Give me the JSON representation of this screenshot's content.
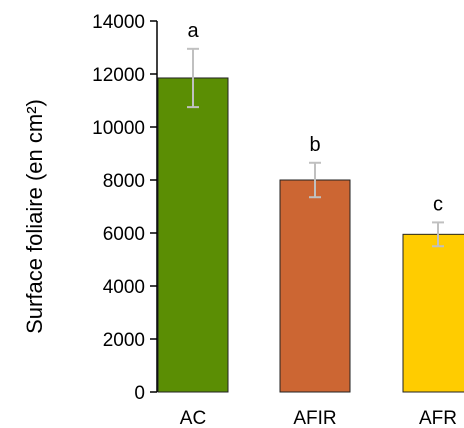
{
  "chart_data": {
    "type": "bar",
    "ylabel": "Surface foliaire (en cm²)",
    "xlabel": "",
    "title": "",
    "ylim": [
      0,
      14000
    ],
    "yticks": [
      0,
      2000,
      4000,
      6000,
      8000,
      10000,
      12000,
      14000
    ],
    "categories": [
      "AC",
      "AFIR",
      "AFR"
    ],
    "values": [
      11850,
      8000,
      5950
    ],
    "errors": [
      1100,
      650,
      450
    ],
    "significance": [
      "a",
      "b",
      "c"
    ],
    "colors": [
      "#5b8e04",
      "#cc6633",
      "#ffcc00"
    ],
    "error_bar_color": "#c0c0c0",
    "grid": false
  }
}
